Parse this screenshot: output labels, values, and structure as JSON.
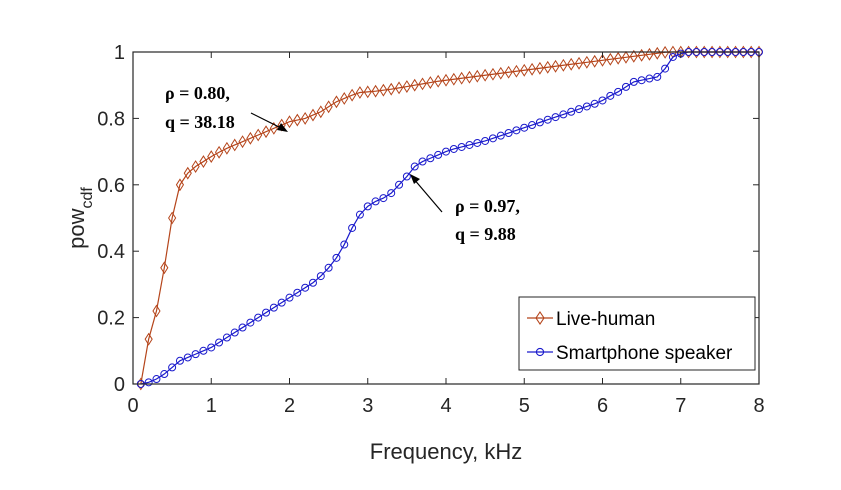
{
  "chart_data": {
    "type": "line",
    "xlabel": "Frequency, kHz",
    "ylabel": "pow",
    "ylabel_sub": "cdf",
    "xlim": [
      0,
      8
    ],
    "ylim": [
      0,
      1
    ],
    "x_ticks": [
      "0",
      "1",
      "2",
      "3",
      "4",
      "5",
      "6",
      "7",
      "8"
    ],
    "y_ticks": [
      "0",
      "0.2",
      "0.4",
      "0.6",
      "0.8",
      "1"
    ],
    "grid": false,
    "legend_position": "bottom-right",
    "series": [
      {
        "name": "Live-human",
        "color": "#b5451b",
        "marker": "diamond",
        "x": [
          0.1,
          0.2,
          0.3,
          0.4,
          0.5,
          0.6,
          0.7,
          0.8,
          0.9,
          1.0,
          1.1,
          1.2,
          1.3,
          1.4,
          1.5,
          1.6,
          1.7,
          1.8,
          1.9,
          2.0,
          2.1,
          2.2,
          2.3,
          2.4,
          2.5,
          2.6,
          2.7,
          2.8,
          2.9,
          3.0,
          3.1,
          3.2,
          3.3,
          3.4,
          3.5,
          3.6,
          3.7,
          3.8,
          3.9,
          4.0,
          4.1,
          4.2,
          4.3,
          4.4,
          4.5,
          4.6,
          4.7,
          4.8,
          4.9,
          5.0,
          5.1,
          5.2,
          5.3,
          5.4,
          5.5,
          5.6,
          5.7,
          5.8,
          5.9,
          6.0,
          6.1,
          6.2,
          6.3,
          6.4,
          6.5,
          6.6,
          6.7,
          6.8,
          6.9,
          7.0,
          7.1,
          7.2,
          7.3,
          7.4,
          7.5,
          7.6,
          7.7,
          7.8,
          7.9,
          8.0
        ],
        "y": [
          0.0,
          0.135,
          0.22,
          0.35,
          0.5,
          0.6,
          0.635,
          0.655,
          0.67,
          0.685,
          0.698,
          0.71,
          0.72,
          0.73,
          0.74,
          0.75,
          0.76,
          0.77,
          0.78,
          0.79,
          0.795,
          0.8,
          0.81,
          0.82,
          0.835,
          0.85,
          0.86,
          0.87,
          0.878,
          0.88,
          0.882,
          0.885,
          0.888,
          0.892,
          0.896,
          0.9,
          0.904,
          0.908,
          0.912,
          0.915,
          0.918,
          0.921,
          0.924,
          0.927,
          0.93,
          0.933,
          0.936,
          0.939,
          0.942,
          0.945,
          0.948,
          0.951,
          0.954,
          0.957,
          0.96,
          0.963,
          0.966,
          0.969,
          0.972,
          0.975,
          0.978,
          0.981,
          0.984,
          0.987,
          0.99,
          0.993,
          0.996,
          0.999,
          1.0,
          1.0,
          1.0,
          1.0,
          1.0,
          1.0,
          1.0,
          1.0,
          1.0,
          1.0,
          1.0,
          1.0
        ]
      },
      {
        "name": "Smartphone speaker",
        "color": "#1a1acc",
        "marker": "circle",
        "x": [
          0.1,
          0.2,
          0.3,
          0.4,
          0.5,
          0.6,
          0.7,
          0.8,
          0.9,
          1.0,
          1.1,
          1.2,
          1.3,
          1.4,
          1.5,
          1.6,
          1.7,
          1.8,
          1.9,
          2.0,
          2.1,
          2.2,
          2.3,
          2.4,
          2.5,
          2.6,
          2.7,
          2.8,
          2.9,
          3.0,
          3.1,
          3.2,
          3.3,
          3.4,
          3.5,
          3.6,
          3.7,
          3.8,
          3.9,
          4.0,
          4.1,
          4.2,
          4.3,
          4.4,
          4.5,
          4.6,
          4.7,
          4.8,
          4.9,
          5.0,
          5.1,
          5.2,
          5.3,
          5.4,
          5.5,
          5.6,
          5.7,
          5.8,
          5.9,
          6.0,
          6.1,
          6.2,
          6.3,
          6.4,
          6.5,
          6.6,
          6.7,
          6.8,
          6.9,
          7.0,
          7.1,
          7.2,
          7.3,
          7.4,
          7.5,
          7.6,
          7.7,
          7.8,
          7.9,
          8.0
        ],
        "y": [
          0.0,
          0.005,
          0.015,
          0.03,
          0.05,
          0.07,
          0.08,
          0.09,
          0.1,
          0.11,
          0.125,
          0.14,
          0.155,
          0.17,
          0.185,
          0.2,
          0.215,
          0.23,
          0.245,
          0.26,
          0.275,
          0.29,
          0.305,
          0.325,
          0.35,
          0.38,
          0.42,
          0.47,
          0.51,
          0.535,
          0.55,
          0.56,
          0.575,
          0.6,
          0.625,
          0.655,
          0.67,
          0.68,
          0.69,
          0.7,
          0.708,
          0.714,
          0.72,
          0.726,
          0.732,
          0.74,
          0.748,
          0.756,
          0.764,
          0.772,
          0.78,
          0.788,
          0.796,
          0.804,
          0.812,
          0.82,
          0.828,
          0.836,
          0.844,
          0.854,
          0.868,
          0.88,
          0.895,
          0.91,
          0.915,
          0.92,
          0.925,
          0.95,
          0.985,
          0.995,
          1.0,
          1.0,
          1.0,
          1.0,
          1.0,
          1.0,
          1.0,
          1.0,
          1.0,
          1.0
        ]
      }
    ],
    "annotations": [
      {
        "line1": "ρ  =  0.80,",
        "line2": "q    =  38.18",
        "target": [
          2.1,
          0.79
        ]
      },
      {
        "line1": "ρ  =  0.97,",
        "line2": "q    =  9.88",
        "target": [
          3.55,
          0.66
        ]
      }
    ]
  }
}
